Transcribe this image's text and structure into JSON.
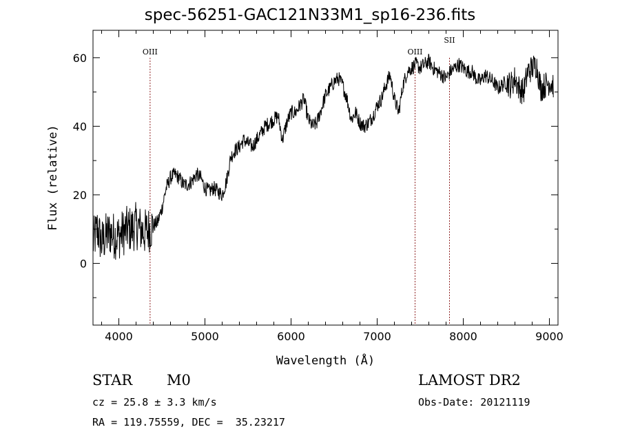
{
  "chart_data": {
    "type": "line",
    "title": "spec-56251-GAC121N33M1_sp16-236.fits",
    "xlabel": "Wavelength (Å)",
    "ylabel": "Flux (relative)",
    "xlim": [
      3700,
      9100
    ],
    "ylim": [
      -18,
      68
    ],
    "x_ticks": [
      4000,
      5000,
      6000,
      7000,
      8000,
      9000
    ],
    "y_ticks": [
      0,
      20,
      40,
      60
    ],
    "grid": false,
    "series": [
      {
        "color": "#000000",
        "x": [
          3700,
          3750,
          3800,
          3850,
          3900,
          3950,
          4000,
          4050,
          4100,
          4150,
          4200,
          4250,
          4300,
          4350,
          4400,
          4450,
          4500,
          4550,
          4600,
          4650,
          4700,
          4750,
          4800,
          4850,
          4900,
          4950,
          5000,
          5050,
          5100,
          5150,
          5200,
          5250,
          5300,
          5350,
          5400,
          5450,
          5500,
          5550,
          5600,
          5650,
          5700,
          5750,
          5800,
          5850,
          5900,
          5950,
          6000,
          6050,
          6100,
          6150,
          6200,
          6250,
          6300,
          6350,
          6400,
          6450,
          6500,
          6550,
          6600,
          6650,
          6700,
          6750,
          6800,
          6850,
          6900,
          6950,
          7000,
          7050,
          7100,
          7150,
          7200,
          7250,
          7300,
          7350,
          7400,
          7450,
          7500,
          7550,
          7600,
          7650,
          7700,
          7750,
          7800,
          7850,
          7900,
          7950,
          8000,
          8050,
          8100,
          8150,
          8200,
          8250,
          8300,
          8350,
          8400,
          8450,
          8500,
          8550,
          8600,
          8650,
          8700,
          8750,
          8800,
          8850,
          8900,
          8950,
          9000,
          9050
        ],
        "y": [
          6,
          10,
          6,
          8,
          9,
          8,
          8,
          9,
          10,
          10,
          11,
          10,
          9,
          10,
          11,
          12,
          16,
          22,
          25,
          26,
          25,
          23,
          23,
          24,
          26,
          25,
          22,
          21,
          22,
          21,
          20,
          24,
          31,
          33,
          34,
          36,
          35,
          34,
          36,
          38,
          40,
          41,
          42,
          43,
          36,
          41,
          44,
          44,
          46,
          48,
          42,
          40,
          41,
          45,
          49,
          51,
          53,
          54,
          52,
          48,
          42,
          44,
          41,
          40,
          41,
          43,
          46,
          48,
          52,
          55,
          48,
          44,
          52,
          56,
          57,
          58,
          57,
          58,
          59,
          57,
          56,
          55,
          54,
          56,
          57,
          58,
          57,
          56,
          56,
          54,
          53,
          55,
          54,
          53,
          51,
          52,
          53,
          52,
          54,
          51,
          50,
          56,
          57,
          58,
          51,
          52,
          53,
          52
        ]
      }
    ],
    "emission_lines": [
      {
        "label": "OIII",
        "x": 4363
      },
      {
        "label": "OIII",
        "x": 7440
      },
      {
        "label": "SII",
        "x": 7840
      }
    ]
  },
  "info": {
    "class": "STAR",
    "subclass": "M0",
    "survey": "LAMOST DR2",
    "cz": "cz = 25.8 ± 3.3 km/s",
    "obs_date": "Obs-Date: 20121119",
    "coords": "RA = 119.75559, DEC =  35.23217"
  }
}
